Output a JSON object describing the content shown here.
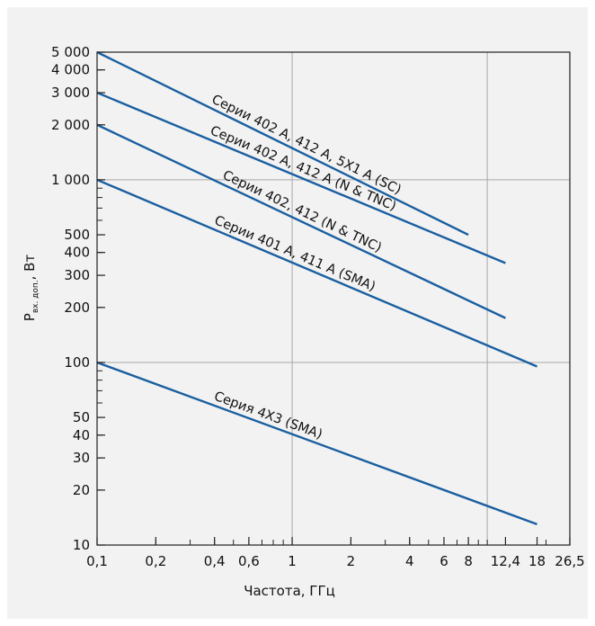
{
  "chart_data": {
    "type": "line",
    "title": "",
    "xlabel": "Частота, ГГц",
    "ylabel_main": "P",
    "ylabel_sub": "вх. доп.",
    "ylabel_unit": ", Вт",
    "x_scale": "log",
    "y_scale": "log",
    "xlim": [
      0.1,
      26.5
    ],
    "ylim": [
      10,
      5000
    ],
    "grid": true,
    "grid_lines_x": [
      1,
      10
    ],
    "grid_lines_y": [
      100,
      1000
    ],
    "x_ticks": [
      {
        "value": 0.1,
        "label": "0,1"
      },
      {
        "value": 0.2,
        "label": "0,2"
      },
      {
        "value": 0.4,
        "label": "0,4"
      },
      {
        "value": 0.6,
        "label": "0,6"
      },
      {
        "value": 1,
        "label": "1"
      },
      {
        "value": 2,
        "label": "2"
      },
      {
        "value": 4,
        "label": "4"
      },
      {
        "value": 6,
        "label": "6"
      },
      {
        "value": 8,
        "label": "8"
      },
      {
        "value": 12.4,
        "label": "12,4"
      },
      {
        "value": 18,
        "label": "18"
      },
      {
        "value": 26.5,
        "label": "26,5"
      }
    ],
    "y_ticks": [
      {
        "value": 10,
        "label": "10"
      },
      {
        "value": 20,
        "label": "20"
      },
      {
        "value": 30,
        "label": "30"
      },
      {
        "value": 40,
        "label": "40"
      },
      {
        "value": 50,
        "label": "50"
      },
      {
        "value": 100,
        "label": "100"
      },
      {
        "value": 200,
        "label": "200"
      },
      {
        "value": 300,
        "label": "300"
      },
      {
        "value": 400,
        "label": "400"
      },
      {
        "value": 500,
        "label": "500"
      },
      {
        "value": 1000,
        "label": "1 000"
      },
      {
        "value": 2000,
        "label": "2 000"
      },
      {
        "value": 3000,
        "label": "3 000"
      },
      {
        "value": 4000,
        "label": "4 000"
      },
      {
        "value": 5000,
        "label": "5 000"
      }
    ],
    "series": [
      {
        "name": "Серии 402 А, 412 А, 5X1 А (SC)",
        "x": [
          0.1,
          8
        ],
        "y": [
          5000,
          500
        ]
      },
      {
        "name": "Серии 402 А, 412 А (N & TNC)",
        "x": [
          0.1,
          12.4
        ],
        "y": [
          3000,
          350
        ]
      },
      {
        "name": "Серии 402, 412 (N & TNC)",
        "x": [
          0.1,
          12.4
        ],
        "y": [
          2000,
          175
        ]
      },
      {
        "name": "Серии 401 А, 411 А (SMA)",
        "x": [
          0.1,
          18
        ],
        "y": [
          1000,
          95
        ]
      },
      {
        "name": "Серия 4X3 (SMA)",
        "x": [
          0.1,
          18
        ],
        "y": [
          100,
          13
        ]
      }
    ],
    "colors": {
      "line": "#1a5fa0",
      "axis": "#222222",
      "grid": "#a8a8a8",
      "background": "#f2f2f2"
    }
  }
}
